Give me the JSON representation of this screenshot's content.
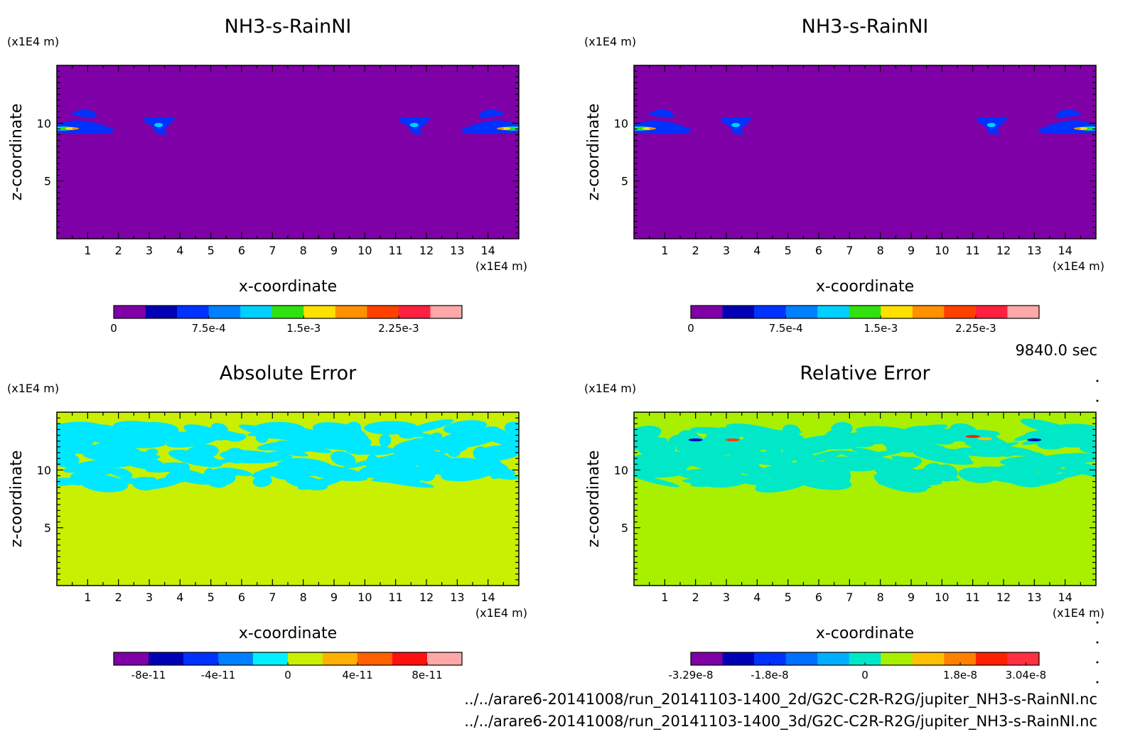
{
  "figure": {
    "time_label": "9840.0 sec",
    "footer_lines": [
      "../../arare6-20141008/run_20141103-1400_2d/G2C-C2R-R2G/jupiter_NH3-s-RainNI.nc",
      "../../arare6-20141008/run_20141103-1400_3d/G2C-C2R-R2G/jupiter_NH3-s-RainNI.nc"
    ]
  },
  "chart_data": [
    {
      "type": "heatmap",
      "title": "NH3-s-RainNI",
      "xlabel": "x-coordinate",
      "ylabel": "z-coordinate",
      "x_unit_label": "(x1E4 m)",
      "y_unit_label": "(x1E4 m)",
      "xlim": [
        0,
        15
      ],
      "ylim": [
        0,
        15
      ],
      "x_ticks": [
        1,
        2,
        3,
        4,
        5,
        6,
        7,
        8,
        9,
        10,
        11,
        12,
        13,
        14
      ],
      "y_ticks": [
        5,
        10
      ],
      "background_color": "#7f00a6",
      "colorbar": {
        "colors": [
          "#7f00a6",
          "#0000b4",
          "#0032ff",
          "#0080ff",
          "#00d0ff",
          "#30e010",
          "#ffe000",
          "#ff9000",
          "#ff4000",
          "#ff2040",
          "#ffa8a8"
        ],
        "tick_values": [
          0,
          0.00075,
          0.0015,
          0.00225
        ],
        "tick_labels": [
          "0",
          "7.5e-4",
          "1.5e-3",
          "2.25e-3"
        ],
        "range": [
          0,
          0.00275
        ]
      },
      "features": [
        {
          "kind": "plume",
          "x": 0.4,
          "z": 9.6,
          "color": "#0032ff"
        },
        {
          "kind": "plume",
          "x": 3.35,
          "z": 9.6,
          "color": "#0032ff"
        },
        {
          "kind": "plume",
          "x": 11.65,
          "z": 9.6,
          "color": "#0032ff"
        },
        {
          "kind": "plume",
          "x": 14.6,
          "z": 9.6,
          "color": "#0032ff"
        }
      ]
    },
    {
      "type": "heatmap",
      "title": "NH3-s-RainNI",
      "xlabel": "x-coordinate",
      "ylabel": "z-coordinate",
      "x_unit_label": "(x1E4 m)",
      "y_unit_label": "(x1E4 m)",
      "xlim": [
        0,
        15
      ],
      "ylim": [
        0,
        15
      ],
      "x_ticks": [
        1,
        2,
        3,
        4,
        5,
        6,
        7,
        8,
        9,
        10,
        11,
        12,
        13,
        14
      ],
      "y_ticks": [
        5,
        10
      ],
      "background_color": "#7f00a6",
      "colorbar": {
        "colors": [
          "#7f00a6",
          "#0000b4",
          "#0032ff",
          "#0080ff",
          "#00d0ff",
          "#30e010",
          "#ffe000",
          "#ff9000",
          "#ff4000",
          "#ff2040",
          "#ffa8a8"
        ],
        "tick_values": [
          0,
          0.00075,
          0.0015,
          0.00225
        ],
        "tick_labels": [
          "0",
          "7.5e-4",
          "1.5e-3",
          "2.25e-3"
        ],
        "range": [
          0,
          0.00275
        ]
      },
      "features": [
        {
          "kind": "plume",
          "x": 0.4,
          "z": 9.6,
          "color": "#0032ff"
        },
        {
          "kind": "plume",
          "x": 3.35,
          "z": 9.6,
          "color": "#0032ff"
        },
        {
          "kind": "plume",
          "x": 11.65,
          "z": 9.6,
          "color": "#0032ff"
        },
        {
          "kind": "plume",
          "x": 14.6,
          "z": 9.6,
          "color": "#0032ff"
        }
      ]
    },
    {
      "type": "heatmap",
      "title": "Absolute Error",
      "xlabel": "x-coordinate",
      "ylabel": "z-coordinate",
      "x_unit_label": "(x1E4 m)",
      "y_unit_label": "(x1E4 m)",
      "xlim": [
        0,
        15
      ],
      "ylim": [
        0,
        15
      ],
      "x_ticks": [
        1,
        2,
        3,
        4,
        5,
        6,
        7,
        8,
        9,
        10,
        11,
        12,
        13,
        14
      ],
      "y_ticks": [
        5,
        10
      ],
      "background_color": "#c8f000",
      "noise_color": "#00e8ff",
      "noise_z_range": [
        8.8,
        13.8
      ],
      "colorbar": {
        "colors": [
          "#7f00a6",
          "#0000b4",
          "#0032ff",
          "#0080ff",
          "#00f0ff",
          "#c8f000",
          "#ffb000",
          "#ff6000",
          "#ff1010",
          "#ffa8a8"
        ],
        "tick_values": [
          -8e-11,
          -4e-11,
          0,
          4e-11,
          8e-11
        ],
        "tick_labels": [
          "-8e-11",
          "-4e-11",
          "0",
          "4e-11",
          "8e-11"
        ],
        "range": [
          -1e-10,
          1e-10
        ]
      }
    },
    {
      "type": "heatmap",
      "title": "Relative Error",
      "xlabel": "x-coordinate",
      "ylabel": "z-coordinate",
      "x_unit_label": "(x1E4 m)",
      "y_unit_label": "(x1E4 m)",
      "xlim": [
        0,
        15
      ],
      "ylim": [
        0,
        15
      ],
      "x_ticks": [
        1,
        2,
        3,
        4,
        5,
        6,
        7,
        8,
        9,
        10,
        11,
        12,
        13,
        14
      ],
      "y_ticks": [
        5,
        10
      ],
      "background_color": "#a8f000",
      "noise_color": "#00e8c8",
      "noise_z_range": [
        8.8,
        13.8
      ],
      "colorbar": {
        "colors": [
          "#7f00a6",
          "#0000b4",
          "#0032ff",
          "#0070ff",
          "#00b0ff",
          "#00e8c8",
          "#a8f000",
          "#ffc000",
          "#ff8000",
          "#ff2000",
          "#ff3040"
        ],
        "tick_values": [
          -3.29e-08,
          -1.8e-08,
          0,
          1.8e-08,
          3.04e-08
        ],
        "tick_labels": [
          "-3.29e-8",
          "-1.8e-8",
          "0",
          "1.8e-8",
          "3.04e-8"
        ],
        "range": [
          -3.29e-08,
          3.29e-08
        ]
      }
    }
  ]
}
